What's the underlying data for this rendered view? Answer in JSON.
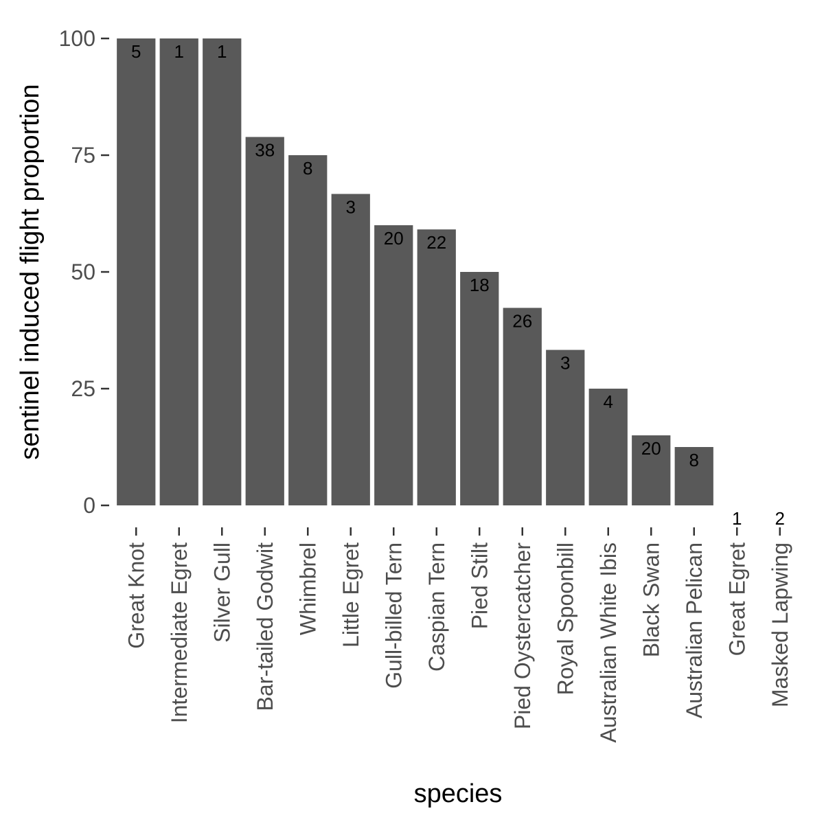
{
  "chart_data": {
    "type": "bar",
    "categories": [
      "Great Knot",
      "Intermediate Egret",
      "Silver Gull",
      "Bar-tailed Godwit",
      "Whimbrel",
      "Little Egret",
      "Gull-billed Tern",
      "Caspian Tern",
      "Pied Stilt",
      "Pied Oystercatcher",
      "Royal Spoonbill",
      "Australian White Ibis",
      "Black Swan",
      "Australian Pelican",
      "Great Egret",
      "Masked Lapwing"
    ],
    "values": [
      100,
      100,
      100,
      78.9,
      75,
      66.7,
      60,
      59.1,
      50,
      42.3,
      33.3,
      25,
      15,
      12.5,
      0,
      0
    ],
    "counts": [
      "5",
      "1",
      "1",
      "38",
      "8",
      "3",
      "20",
      "22",
      "18",
      "26",
      "3",
      "4",
      "20",
      "8",
      "1",
      "2"
    ],
    "xlabel": "species",
    "ylabel": "sentinel induced flight proportion",
    "ylim": [
      0,
      100
    ],
    "yticks": [
      0,
      25,
      50,
      75,
      100
    ],
    "ytick_labels": [
      "0",
      "25",
      "50",
      "75",
      "100"
    ],
    "grid": false,
    "colors": {
      "bar": "#595959",
      "tick": "#333333",
      "tick_label": "#4d4d4d",
      "text": "#000000"
    }
  }
}
